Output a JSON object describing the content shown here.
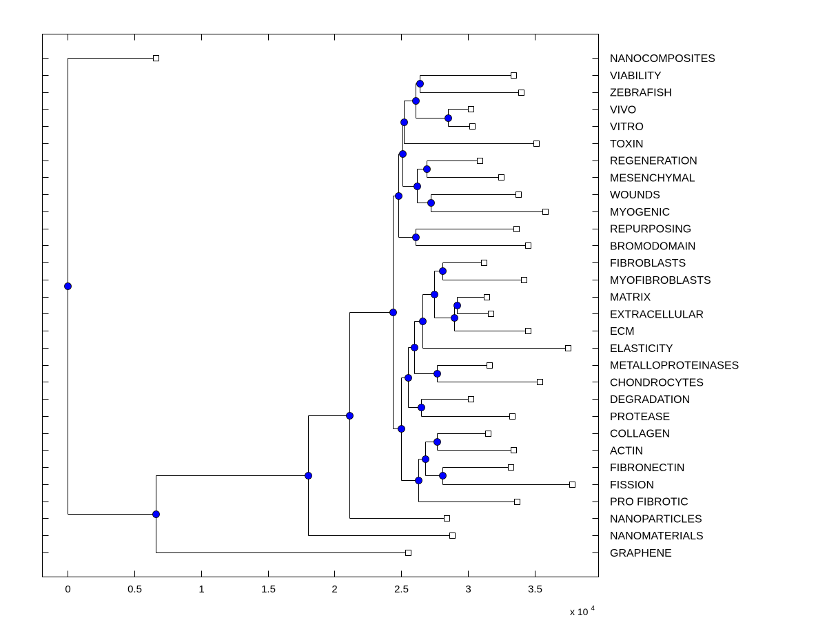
{
  "chart_data": {
    "type": "dendrogram",
    "title": "",
    "xlabel": "",
    "ylabel": "",
    "x_multiplier_label": "x 10",
    "x_multiplier_exponent": "4",
    "xlim": [
      -0.19,
      3.98
    ],
    "xticks": [
      0,
      0.5,
      1,
      1.5,
      2,
      2.5,
      3,
      3.5
    ],
    "xtick_labels": [
      "0",
      "0.5",
      "1",
      "1.5",
      "2",
      "2.5",
      "3",
      "3.5"
    ],
    "grid": false,
    "orientation": "left-to-right, labels on right",
    "colors": {
      "node_fill": "#0000ff",
      "node_stroke": "#000000",
      "leaf_fill": "#ffffff",
      "leaf_stroke": "#000000",
      "line": "#000000"
    },
    "leaves": [
      {
        "label": "NANOCOMPOSITES",
        "x": 0.66
      },
      {
        "label": "VIABILITY",
        "x": 3.34
      },
      {
        "label": "ZEBRAFISH",
        "x": 3.4
      },
      {
        "label": "VIVO",
        "x": 3.02
      },
      {
        "label": "VITRO",
        "x": 3.03
      },
      {
        "label": "TOXIN",
        "x": 3.51
      },
      {
        "label": "REGENERATION",
        "x": 3.09
      },
      {
        "label": "MESENCHYMAL",
        "x": 3.25
      },
      {
        "label": "WOUNDS",
        "x": 3.38
      },
      {
        "label": "MYOGENIC",
        "x": 3.58
      },
      {
        "label": "REPURPOSING",
        "x": 3.36
      },
      {
        "label": "BROMODOMAIN",
        "x": 3.45
      },
      {
        "label": "FIBROBLASTS",
        "x": 3.12
      },
      {
        "label": "MYOFIBROBLASTS",
        "x": 3.42
      },
      {
        "label": "MATRIX",
        "x": 3.14
      },
      {
        "label": "EXTRACELLULAR",
        "x": 3.17
      },
      {
        "label": "ECM",
        "x": 3.45
      },
      {
        "label": "ELASTICITY",
        "x": 3.75
      },
      {
        "label": "METALLOPROTEINASES",
        "x": 3.16
      },
      {
        "label": "CHONDROCYTES",
        "x": 3.54
      },
      {
        "label": "DEGRADATION",
        "x": 3.02
      },
      {
        "label": "PROTEASE",
        "x": 3.33
      },
      {
        "label": "COLLAGEN",
        "x": 3.15
      },
      {
        "label": "ACTIN",
        "x": 3.34
      },
      {
        "label": "FIBRONECTIN",
        "x": 3.32
      },
      {
        "label": "FISSION",
        "x": 3.78
      },
      {
        "label": "PRO FIBROTIC",
        "x": 3.37
      },
      {
        "label": "NANOPARTICLES",
        "x": 2.84
      },
      {
        "label": "NANOMATERIALS",
        "x": 2.88
      },
      {
        "label": "GRAPHENE",
        "x": 2.55
      }
    ],
    "nodes": [
      {
        "id": "n_vz",
        "x": 2.64,
        "children": [
          "VIABILITY",
          "ZEBRAFISH"
        ]
      },
      {
        "id": "n_vv",
        "x": 2.85,
        "children": [
          "VIVO",
          "VITRO"
        ]
      },
      {
        "id": "n_b",
        "x": 2.61,
        "children": [
          "n_vz",
          "n_vv"
        ]
      },
      {
        "id": "n_d",
        "x": 2.52,
        "children": [
          "n_b",
          "TOXIN"
        ]
      },
      {
        "id": "n_rm",
        "x": 2.69,
        "children": [
          "REGENERATION",
          "MESENCHYMAL"
        ]
      },
      {
        "id": "n_wm",
        "x": 2.72,
        "children": [
          "WOUNDS",
          "MYOGENIC"
        ]
      },
      {
        "id": "n_g",
        "x": 2.62,
        "children": [
          "n_rm",
          "n_wm"
        ]
      },
      {
        "id": "n_e",
        "x": 2.51,
        "children": [
          "n_d",
          "n_g"
        ]
      },
      {
        "id": "n_rb",
        "x": 2.61,
        "children": [
          "REPURPOSING",
          "BROMODOMAIN"
        ]
      },
      {
        "id": "n_h",
        "x": 2.48,
        "children": [
          "n_e",
          "n_rb"
        ]
      },
      {
        "id": "n_fm",
        "x": 2.81,
        "children": [
          "FIBROBLASTS",
          "MYOFIBROBLASTS"
        ]
      },
      {
        "id": "n_me",
        "x": 2.92,
        "children": [
          "MATRIX",
          "EXTRACELLULAR"
        ]
      },
      {
        "id": "n_mec",
        "x": 2.9,
        "children": [
          "n_me",
          "ECM"
        ]
      },
      {
        "id": "n_j",
        "x": 2.75,
        "children": [
          "n_fm",
          "n_mec"
        ]
      },
      {
        "id": "n_je",
        "x": 2.66,
        "children": [
          "n_j",
          "ELASTICITY"
        ]
      },
      {
        "id": "n_mc",
        "x": 2.77,
        "children": [
          "METALLOPROTEINASES",
          "CHONDROCYTES"
        ]
      },
      {
        "id": "n_jm",
        "x": 2.6,
        "children": [
          "n_je",
          "n_mc"
        ]
      },
      {
        "id": "n_dp",
        "x": 2.65,
        "children": [
          "DEGRADATION",
          "PROTEASE"
        ]
      },
      {
        "id": "n_upper_ecm",
        "x": 2.55,
        "children": [
          "n_jm",
          "n_dp"
        ]
      },
      {
        "id": "n_ca",
        "x": 2.77,
        "children": [
          "COLLAGEN",
          "ACTIN"
        ]
      },
      {
        "id": "n_ff",
        "x": 2.81,
        "children": [
          "FIBRONECTIN",
          "FISSION"
        ]
      },
      {
        "id": "n_caff",
        "x": 2.68,
        "children": [
          "n_ca",
          "n_ff"
        ]
      },
      {
        "id": "n_pf",
        "x": 2.63,
        "children": [
          "n_caff",
          "PRO FIBROTIC"
        ]
      },
      {
        "id": "n_lower",
        "x": 2.5,
        "children": [
          "n_upper_ecm",
          "n_pf"
        ]
      },
      {
        "id": "n_i",
        "x": 2.44,
        "children": [
          "n_h",
          "n_lower"
        ]
      },
      {
        "id": "n_m",
        "x": 2.11,
        "children": [
          "n_i",
          "NANOPARTICLES"
        ]
      },
      {
        "id": "n_l",
        "x": 1.8,
        "children": [
          "n_m",
          "NANOMATERIALS"
        ]
      },
      {
        "id": "n_k",
        "x": 0.66,
        "children": [
          "n_l",
          "GRAPHENE"
        ]
      },
      {
        "id": "root",
        "x": 0.0,
        "children": [
          "NANOCOMPOSITES",
          "n_k"
        ]
      }
    ]
  }
}
